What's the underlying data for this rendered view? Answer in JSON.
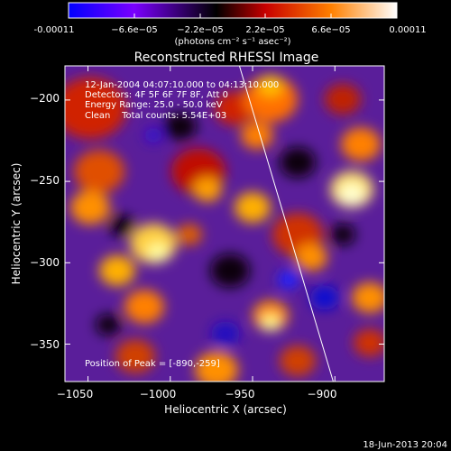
{
  "chart_data": {
    "type": "heatmap",
    "title": "Reconstructed RHESSI Image",
    "xlabel": "Heliocentric X (arcsec)",
    "ylabel": "Heliocentric Y (arcsec)",
    "xlim": [
      -1064,
      -870
    ],
    "ylim": [
      -373,
      -179
    ],
    "x_ticks": [
      -1050,
      -1000,
      -950,
      -900
    ],
    "x_tick_labels": [
      "−1050",
      "−1000",
      "−950",
      "−900"
    ],
    "y_ticks": [
      -350,
      -300,
      -250,
      -200
    ],
    "y_tick_labels": [
      "−350",
      "−300",
      "−250",
      "−200"
    ],
    "colorbar": {
      "range": [
        -0.00011,
        0.00011
      ],
      "tick_labels": [
        "-0.00011",
        "−6.6e−05",
        "−2.2e−05",
        "2.2e−05",
        "6.6e−05",
        "0.00011"
      ],
      "unit_label": "(photons cm⁻² s⁻¹ asec⁻²)",
      "colors": [
        "#0000ff",
        "#7a00ff",
        "#000000",
        "#c80000",
        "#ff8000",
        "#ffffff"
      ]
    },
    "info": {
      "time_range": "12-Jan-2004 04:07:10.000 to 04:13:10.000",
      "detectors": "Detectors: 4F 5F 6F 7F 8F, Att 0",
      "energy": "Energy Range: 25.0 - 50.0 keV",
      "clean_counts": "Clean    Total counts: 5.54E+03",
      "peak": "Position of Peak = [-890,-259]"
    },
    "limb_line": {
      "x": [
        -958,
        -901
      ],
      "y": [
        -179,
        -373
      ]
    },
    "grid": false,
    "footer": "18-Jun-2013 20:04"
  }
}
